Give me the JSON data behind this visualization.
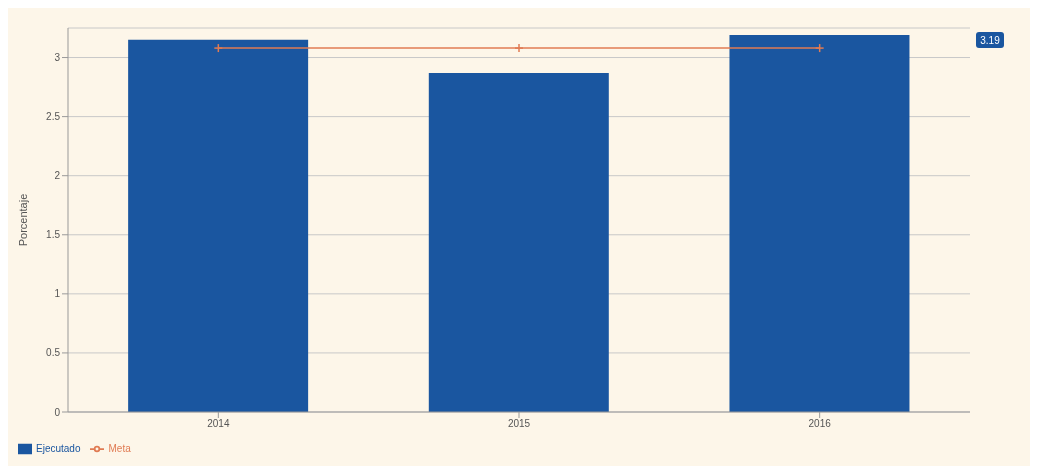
{
  "chart_data": {
    "type": "bar",
    "ylabel": "Porcentaje",
    "categories": [
      "2014",
      "2015",
      "2016"
    ],
    "series": [
      {
        "name": "Ejecutado",
        "color": "#1a56a0",
        "values": [
          3.15,
          2.87,
          3.19
        ]
      },
      {
        "name": "Meta",
        "type": "line",
        "color": "#e07b53",
        "values": [
          3.08,
          3.08,
          3.08
        ]
      }
    ],
    "ylim": [
      0,
      3.25
    ],
    "yticks": [
      0,
      0.5,
      1,
      1.5,
      2,
      2.5,
      3
    ],
    "grid": "y",
    "legend": "bottom left",
    "marker": "cross",
    "line_style": "solid",
    "annotations": [
      "3.19"
    ]
  }
}
